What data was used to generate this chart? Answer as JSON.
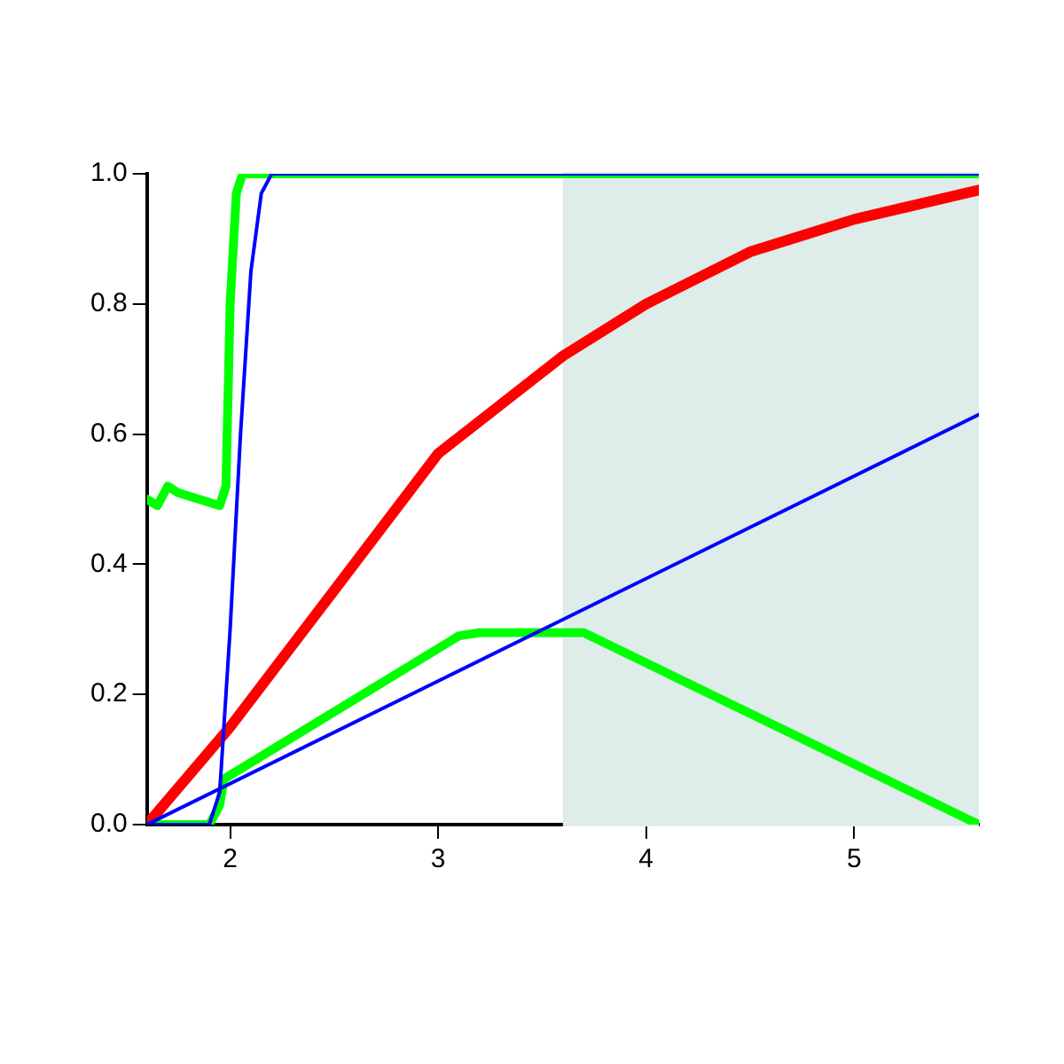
{
  "chart_data": {
    "type": "line",
    "xlim": [
      1.6,
      5.6
    ],
    "ylim": [
      0,
      1
    ],
    "xticks": [
      2,
      3,
      4,
      5
    ],
    "yticks": [
      {
        "value": 0,
        "label": "0.0"
      },
      {
        "value": 0.2,
        "label": "0.2"
      },
      {
        "value": 0.4,
        "label": "0.4"
      },
      {
        "value": 0.6,
        "label": "0.6"
      },
      {
        "value": 0.8,
        "label": "0.8"
      },
      {
        "value": 1,
        "label": "1.0"
      }
    ],
    "grid": false,
    "legend": false,
    "marker": "none",
    "line_style": "solid",
    "bands": [
      {
        "axis": "x",
        "from": 3.6,
        "to": 5.6,
        "color": "#deecea"
      }
    ],
    "series": [
      {
        "color": "#0000ff",
        "x": [
          1.6,
          5.6
        ],
        "values": [
          0,
          0.63
        ]
      },
      {
        "color": "#0000ff",
        "x": [
          1.6,
          1.9,
          1.95,
          2.0,
          2.05,
          2.1,
          2.15,
          2.2,
          5.6
        ],
        "values": [
          0,
          0,
          0.05,
          0.3,
          0.6,
          0.85,
          0.97,
          1,
          1
        ]
      },
      {
        "color": "#ff0000",
        "x": [
          1.6,
          2.0,
          2.5,
          3.0,
          3.6,
          4.0,
          4.5,
          5.0,
          5.6
        ],
        "values": [
          0,
          0.15,
          0.36,
          0.57,
          0.72,
          0.8,
          0.88,
          0.93,
          0.975
        ]
      },
      {
        "color": "#00ff00",
        "x": [
          1.6,
          1.65,
          1.7,
          1.75,
          1.95,
          1.98,
          2.0,
          2.03,
          2.06,
          5.6
        ],
        "values": [
          0.5,
          0.49,
          0.52,
          0.51,
          0.49,
          0.52,
          0.8,
          0.97,
          1,
          1
        ]
      },
      {
        "color": "#00ff00",
        "x": [
          1.6,
          1.9,
          1.95,
          1.97,
          3.1,
          3.2,
          3.7,
          5.6
        ],
        "values": [
          0,
          0,
          0.03,
          0.07,
          0.29,
          0.295,
          0.295,
          0
        ]
      }
    ]
  }
}
